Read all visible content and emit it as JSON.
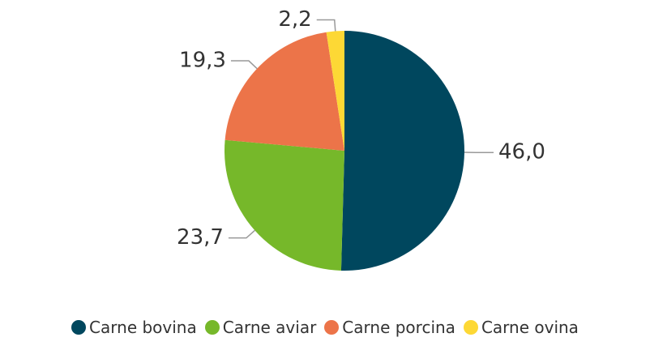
{
  "chart_data": {
    "type": "pie",
    "categories": [
      "Carne bovina",
      "Carne aviar",
      "Carne porcina",
      "Carne ovina"
    ],
    "values": [
      46.0,
      23.7,
      19.3,
      2.2
    ],
    "value_labels": [
      "46,0",
      "23,7",
      "19,3",
      "2,2"
    ],
    "colors": [
      "#00475e",
      "#76b82a",
      "#ec7449",
      "#fdd835"
    ],
    "legend": "bottom"
  }
}
